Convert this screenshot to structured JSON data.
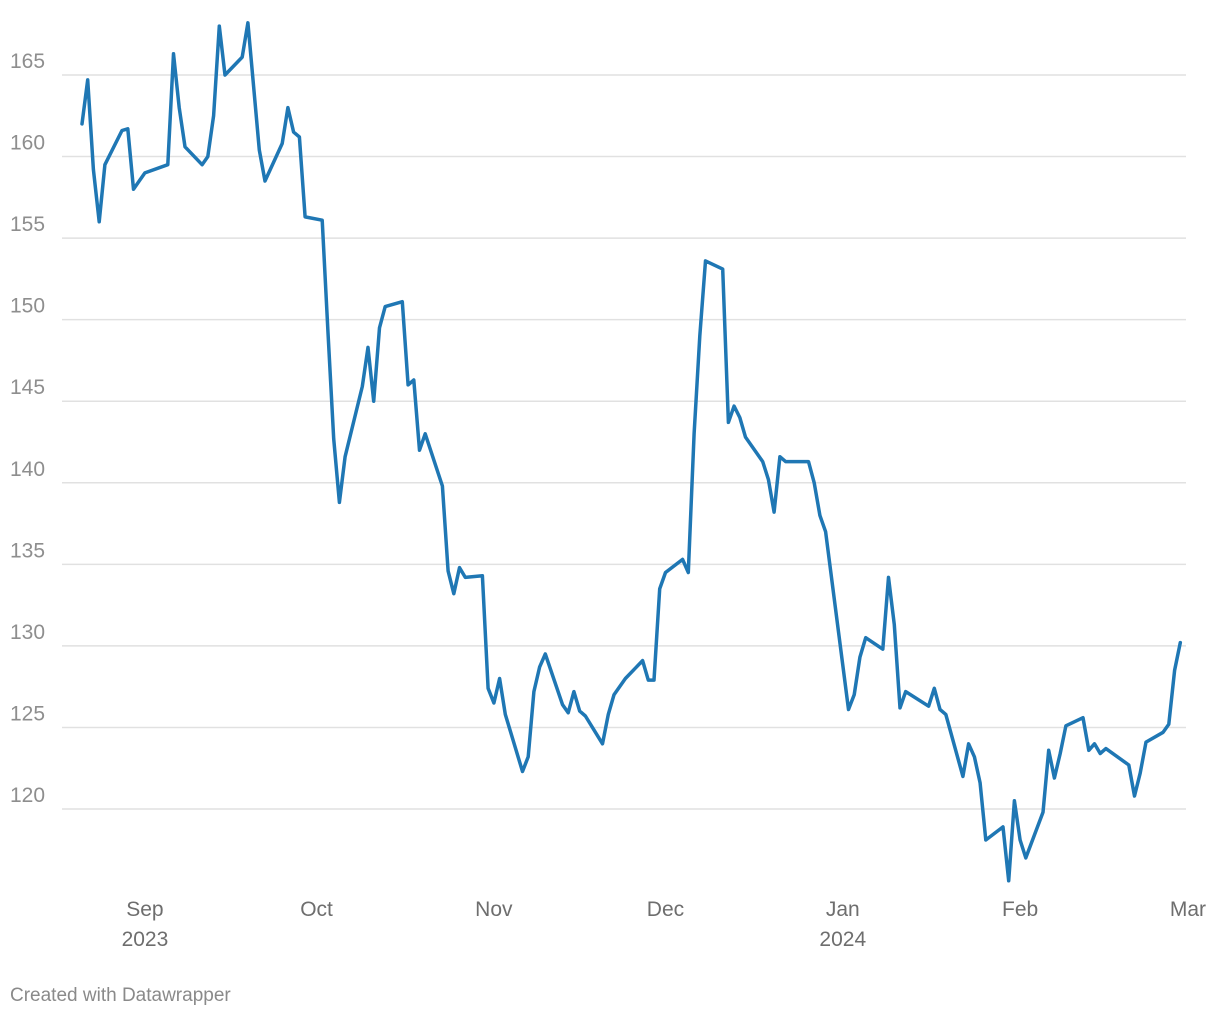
{
  "chart_data": {
    "type": "line",
    "title": "",
    "xlabel": "",
    "ylabel": "",
    "ylim": [
      115,
      168
    ],
    "y_ticks": [
      120,
      125,
      130,
      135,
      140,
      145,
      150,
      155,
      160,
      165
    ],
    "x_range": [
      "2023-08-21",
      "2024-03-01"
    ],
    "x_ticks": [
      {
        "date": "2023-09-01",
        "label": "Sep",
        "sublabel": "2023"
      },
      {
        "date": "2023-10-01",
        "label": "Oct",
        "sublabel": ""
      },
      {
        "date": "2023-11-01",
        "label": "Nov",
        "sublabel": ""
      },
      {
        "date": "2023-12-01",
        "label": "Dec",
        "sublabel": ""
      },
      {
        "date": "2024-01-01",
        "label": "Jan",
        "sublabel": "2024"
      },
      {
        "date": "2024-02-01",
        "label": "Feb",
        "sublabel": ""
      },
      {
        "date": "2024-03-01",
        "label": "Mar",
        "sublabel": ""
      }
    ],
    "grid": true,
    "legend": "none",
    "series": [
      {
        "color": "#1f77b4",
        "x": [
          "2023-08-21",
          "2023-08-22",
          "2023-08-23",
          "2023-08-24",
          "2023-08-25",
          "2023-08-28",
          "2023-08-29",
          "2023-08-30",
          "2023-08-31",
          "2023-09-01",
          "2023-09-05",
          "2023-09-06",
          "2023-09-07",
          "2023-09-08",
          "2023-09-11",
          "2023-09-12",
          "2023-09-13",
          "2023-09-14",
          "2023-09-15",
          "2023-09-18",
          "2023-09-19",
          "2023-09-20",
          "2023-09-21",
          "2023-09-22",
          "2023-09-25",
          "2023-09-26",
          "2023-09-27",
          "2023-09-28",
          "2023-09-29",
          "2023-10-02",
          "2023-10-03",
          "2023-10-04",
          "2023-10-05",
          "2023-10-06",
          "2023-10-09",
          "2023-10-10",
          "2023-10-11",
          "2023-10-12",
          "2023-10-13",
          "2023-10-16",
          "2023-10-17",
          "2023-10-18",
          "2023-10-19",
          "2023-10-20",
          "2023-10-23",
          "2023-10-24",
          "2023-10-25",
          "2023-10-26",
          "2023-10-27",
          "2023-10-30",
          "2023-10-31",
          "2023-11-01",
          "2023-11-02",
          "2023-11-03",
          "2023-11-06",
          "2023-11-07",
          "2023-11-08",
          "2023-11-09",
          "2023-11-10",
          "2023-11-13",
          "2023-11-14",
          "2023-11-15",
          "2023-11-16",
          "2023-11-17",
          "2023-11-20",
          "2023-11-21",
          "2023-11-22",
          "2023-11-24",
          "2023-11-27",
          "2023-11-28",
          "2023-11-29",
          "2023-11-30",
          "2023-12-01",
          "2023-12-04",
          "2023-12-05",
          "2023-12-06",
          "2023-12-07",
          "2023-12-08",
          "2023-12-11",
          "2023-12-12",
          "2023-12-13",
          "2023-12-14",
          "2023-12-15",
          "2023-12-18",
          "2023-12-19",
          "2023-12-20",
          "2023-12-21",
          "2023-12-22",
          "2023-12-26",
          "2023-12-27",
          "2023-12-28",
          "2023-12-29",
          "2024-01-02",
          "2024-01-03",
          "2024-01-04",
          "2024-01-05",
          "2024-01-08",
          "2024-01-09",
          "2024-01-10",
          "2024-01-11",
          "2024-01-12",
          "2024-01-16",
          "2024-01-17",
          "2024-01-18",
          "2024-01-19",
          "2024-01-22",
          "2024-01-23",
          "2024-01-24",
          "2024-01-25",
          "2024-01-26",
          "2024-01-29",
          "2024-01-30",
          "2024-01-31",
          "2024-02-01",
          "2024-02-02",
          "2024-02-05",
          "2024-02-06",
          "2024-02-07",
          "2024-02-08",
          "2024-02-09",
          "2024-02-12",
          "2024-02-13",
          "2024-02-14",
          "2024-02-15",
          "2024-02-16",
          "2024-02-20",
          "2024-02-21",
          "2024-02-22",
          "2024-02-23",
          "2024-02-26",
          "2024-02-27",
          "2024-02-28",
          "2024-02-29"
        ],
        "y": [
          162.0,
          164.7,
          159.2,
          156.0,
          159.5,
          161.6,
          161.7,
          158.0,
          158.5,
          159.0,
          159.5,
          166.3,
          163.0,
          160.6,
          159.5,
          160.0,
          162.5,
          168.0,
          165.0,
          166.1,
          168.2,
          164.3,
          160.4,
          158.5,
          160.8,
          163.0,
          161.5,
          161.2,
          156.3,
          156.1,
          149.2,
          142.7,
          138.8,
          141.6,
          145.9,
          148.3,
          145.0,
          149.5,
          150.8,
          151.1,
          146.0,
          146.3,
          142.0,
          143.0,
          139.8,
          134.6,
          133.2,
          134.8,
          134.2,
          134.3,
          127.4,
          126.5,
          128.0,
          125.8,
          122.3,
          123.2,
          127.2,
          128.7,
          129.5,
          126.4,
          125.9,
          127.2,
          126.0,
          125.7,
          124.0,
          125.8,
          127.0,
          128.0,
          129.1,
          127.9,
          127.9,
          133.5,
          134.5,
          135.3,
          134.5,
          143.0,
          149.0,
          153.6,
          153.1,
          143.7,
          144.7,
          144.0,
          142.8,
          141.3,
          140.2,
          138.2,
          141.6,
          141.3,
          141.3,
          140.0,
          138.0,
          137.0,
          126.1,
          127.0,
          129.3,
          130.5,
          129.8,
          134.2,
          131.3,
          126.2,
          127.2,
          126.3,
          127.4,
          126.1,
          125.8,
          122.0,
          124.0,
          123.2,
          121.6,
          118.1,
          118.9,
          115.6,
          120.5,
          118.1,
          117.0,
          119.8,
          123.6,
          121.9,
          123.4,
          125.1,
          125.6,
          123.6,
          124.0,
          123.4,
          123.7,
          122.7,
          120.8,
          122.2,
          124.1,
          124.7,
          125.2,
          128.5,
          130.2
        ]
      }
    ]
  },
  "footer": {
    "credit": "Created with Datawrapper"
  }
}
